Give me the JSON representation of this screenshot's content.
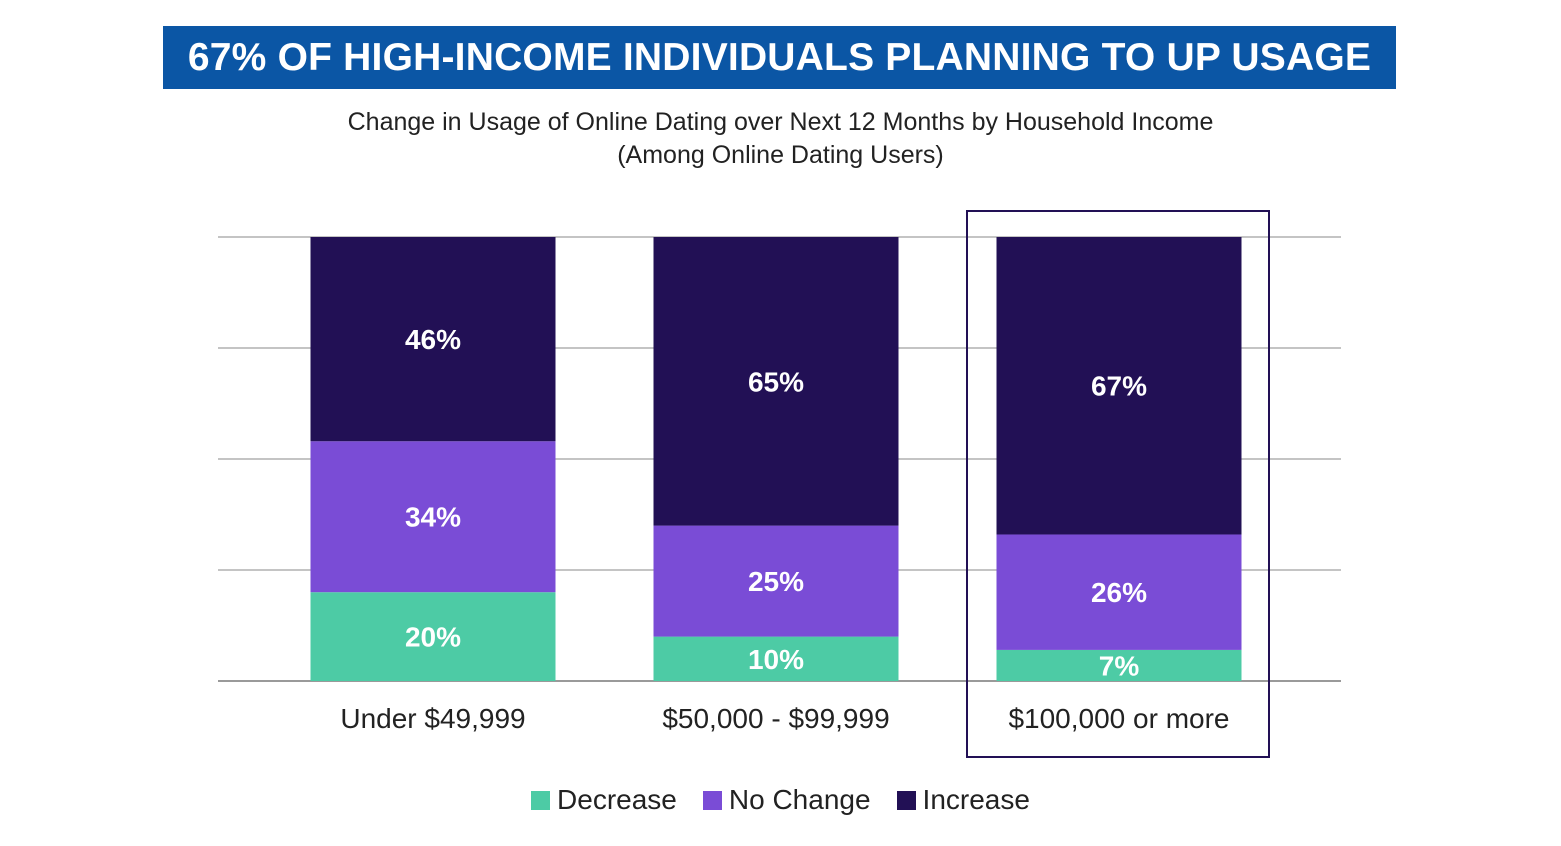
{
  "banner": {
    "title": "67% OF HIGH-INCOME INDIVIDUALS PLANNING TO UP USAGE"
  },
  "chart_data": {
    "type": "bar",
    "stacked": true,
    "title": "Change in Usage of Online Dating over Next 12 Months by Household Income",
    "subtitle": "(Among Online Dating Users)",
    "categories": [
      "Under $49,999",
      "$50,000 - $99,999",
      "$100,000 or more"
    ],
    "series": [
      {
        "name": "Decrease",
        "values": [
          20,
          10,
          7
        ],
        "color": "#4dcba5"
      },
      {
        "name": "No Change",
        "values": [
          34,
          25,
          26
        ],
        "color": "#7a4cd6"
      },
      {
        "name": "Increase",
        "values": [
          46,
          65,
          67
        ],
        "color": "#221055"
      }
    ],
    "data_labels": [
      [
        "20%",
        "10%",
        "7%"
      ],
      [
        "34%",
        "25%",
        "26%"
      ],
      [
        "46%",
        "65%",
        "67%"
      ]
    ],
    "ylim": [
      0,
      100
    ],
    "grid": true,
    "legend_position": "bottom",
    "highlighted_category": "$100,000 or more",
    "highlight_color": "#221055"
  }
}
